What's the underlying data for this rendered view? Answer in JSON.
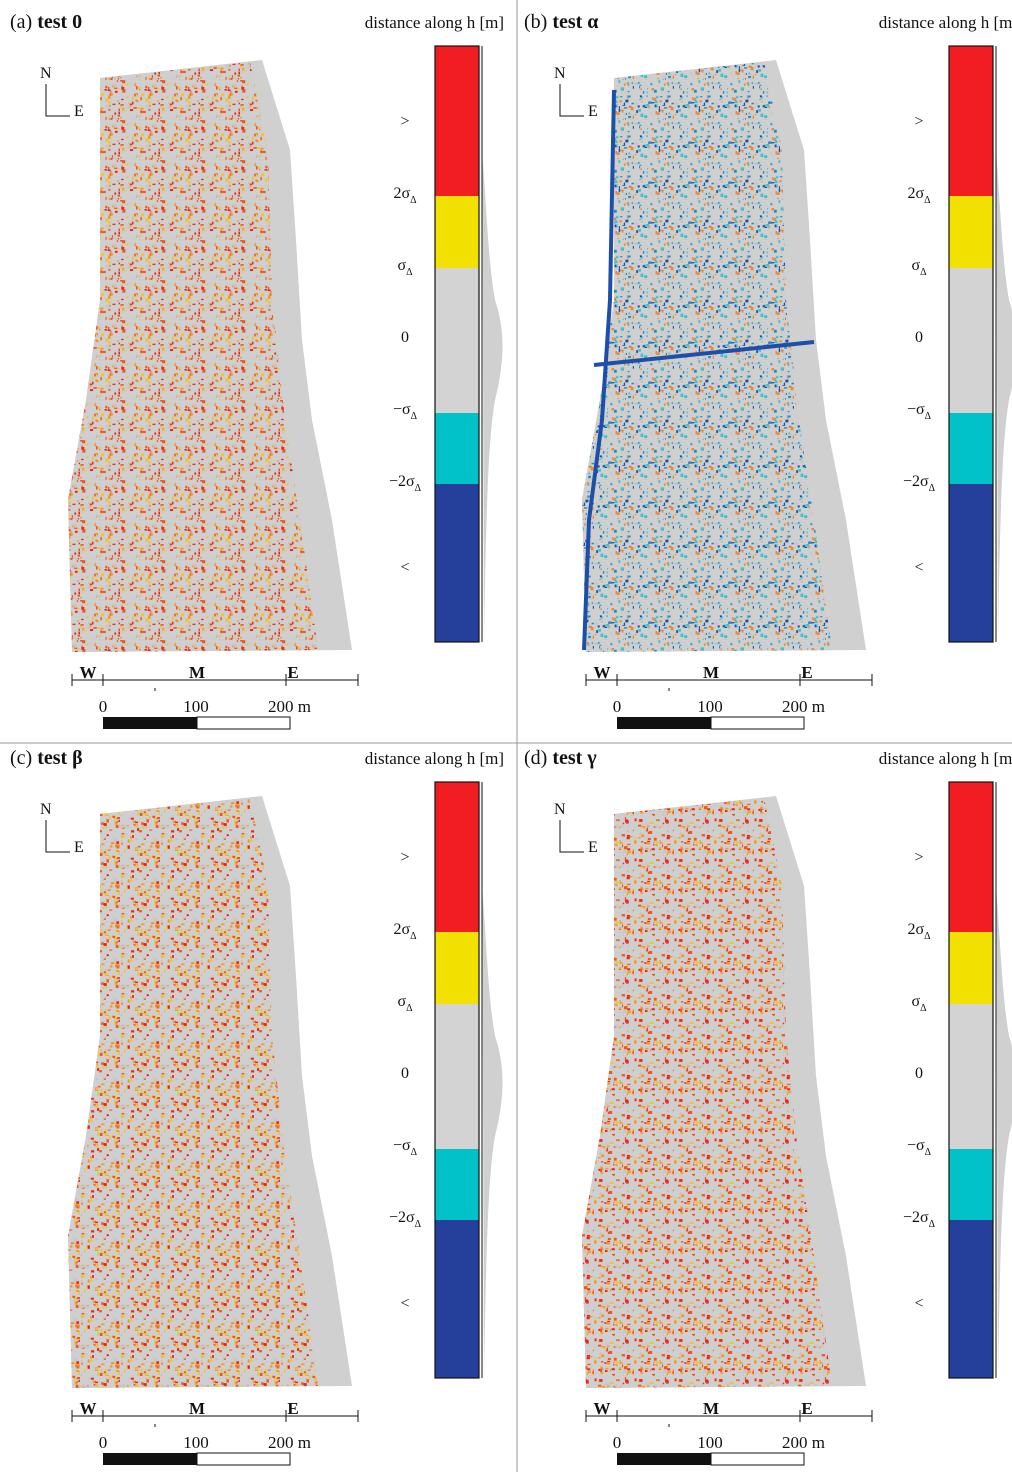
{
  "common": {
    "legend_title": "distance along h [m]",
    "north": "N",
    "east": "E",
    "legend_labels": [
      {
        "text": ">"
      },
      {
        "text": "2σ",
        "sub": "Δ"
      },
      {
        "text": "σ",
        "sub": "Δ"
      },
      {
        "text": "0"
      },
      {
        "text": "−σ",
        "sub": "Δ"
      },
      {
        "text": "−2σ",
        "sub": "Δ"
      },
      {
        "text": "<"
      }
    ],
    "legend_colors": [
      "#f21d23",
      "#f2e100",
      "#d3d3d3",
      "#00c2c8",
      "#24409a"
    ],
    "sections": [
      {
        "text": "W",
        "color": "#e4141c"
      },
      {
        "text": "M",
        "color": "#1fa3e0"
      },
      {
        "text": "E",
        "color": "#e0147f"
      }
    ],
    "scale_labels": [
      "0",
      "100",
      "200 m"
    ]
  },
  "panels": [
    {
      "label": "(a)",
      "title": "test 0"
    },
    {
      "label": "(b)",
      "title": "test α"
    },
    {
      "label": "(c)",
      "title": "test β"
    },
    {
      "label": "(d)",
      "title": "test γ"
    }
  ]
}
